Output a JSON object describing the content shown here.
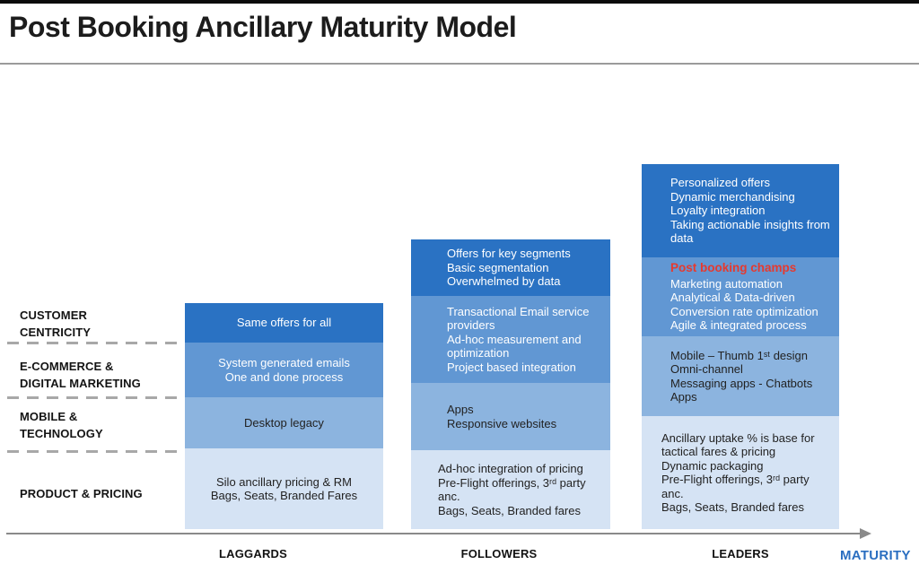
{
  "title": "Post Booking Ancillary Maturity Model",
  "rows": [
    {
      "lines": [
        "CUSTOMER",
        "CENTRICITY"
      ]
    },
    {
      "lines": [
        "E-COMMERCE &",
        "DIGITAL MARKETING"
      ]
    },
    {
      "lines": [
        "MOBILE &",
        "TECHNOLOGY"
      ]
    },
    {
      "lines": [
        "PRODUCT & PRICING"
      ]
    }
  ],
  "columns": [
    {
      "stage": "LAGGARDS",
      "segments": [
        {
          "lines": [
            "Same offers for all"
          ]
        },
        {
          "lines": [
            "System generated emails",
            "One and done process"
          ]
        },
        {
          "lines": [
            "Desktop legacy"
          ]
        },
        {
          "lines": [
            "Silo ancillary pricing & RM",
            "Bags, Seats, Branded Fares"
          ]
        }
      ]
    },
    {
      "stage": "FOLLOWERS",
      "segments": [
        {
          "lines": [
            "Offers for key segments",
            "Basic segmentation",
            "Overwhelmed by data"
          ]
        },
        {
          "lines": [
            "Transactional Email service providers",
            "Ad-hoc measurement and optimization",
            "Project based integration"
          ]
        },
        {
          "lines": [
            "Apps",
            "Responsive websites"
          ]
        },
        {
          "lines": [
            "Ad-hoc integration of pricing",
            "Pre-Flight offerings, 3ʳᵈ party anc.",
            "Bags, Seats, Branded fares"
          ]
        }
      ]
    },
    {
      "stage": "LEADERS",
      "segments": [
        {
          "lines": [
            "Personalized offers",
            "Dynamic merchandising",
            "Loyalty integration",
            "Taking actionable insights from data"
          ]
        },
        {
          "heading": "Post booking champs",
          "lines": [
            "Marketing automation",
            "Analytical & Data-driven",
            "Conversion rate optimization",
            "Agile & integrated process"
          ]
        },
        {
          "lines": [
            "Mobile – Thumb 1ˢᵗ design",
            "Omni-channel",
            "Messaging apps - Chatbots",
            "Apps"
          ]
        },
        {
          "lines": [
            "Ancillary uptake % is base for tactical fares & pricing",
            "Dynamic packaging",
            "Pre-Flight offerings, 3ʳᵈ party anc.",
            "Bags, Seats, Branded fares"
          ]
        }
      ]
    }
  ],
  "axis": {
    "label": "MATURITY"
  },
  "colors": {
    "level1": "#2a72c3",
    "level2": "#6197d3",
    "level3": "#8cb4df",
    "level4": "#d5e3f4",
    "highlight_red": "#e6392e",
    "maturity_label": "#2a6ec0"
  }
}
